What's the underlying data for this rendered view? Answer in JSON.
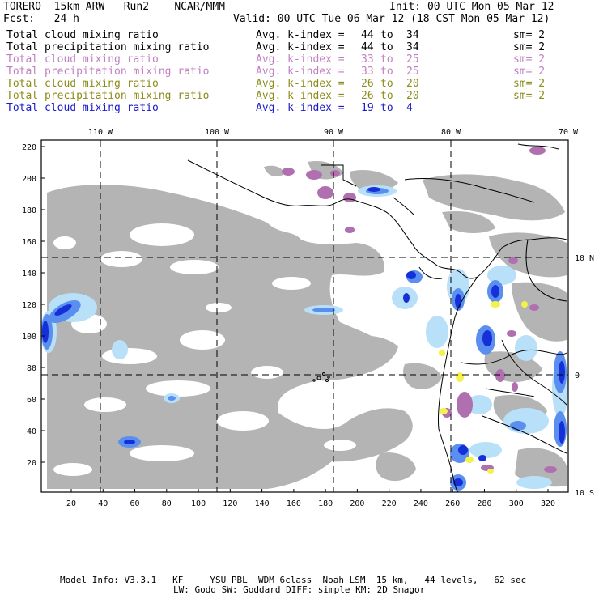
{
  "header": {
    "model": "TORERO",
    "resolution": "15km ARW",
    "run": "Run2",
    "org": "NCAR/MMM",
    "init": "Init: 00 UTC Mon 05 Mar 12",
    "fcst_label": "Fcst:",
    "fcst_value": "24 h",
    "valid": "Valid: 00 UTC Tue 06 Mar 12 (18 CST Mon 05 Mar 12)"
  },
  "legend": [
    {
      "field": "Total cloud mixing ratio",
      "kindex_label": "Avg. k-index =",
      "k_from": "44",
      "to": "to",
      "k_to": "34",
      "sm": "sm= 2",
      "color": "#000000"
    },
    {
      "field": "Total precipitation mixing ratio",
      "kindex_label": "Avg. k-index =",
      "k_from": "44",
      "to": "to",
      "k_to": "34",
      "sm": "sm= 2",
      "color": "#000000"
    },
    {
      "field": "Total cloud mixing ratio",
      "kindex_label": "Avg. k-index =",
      "k_from": "33",
      "to": "to",
      "k_to": "25",
      "sm": "sm= 2",
      "color": "#c080c0"
    },
    {
      "field": "Total precipitation mixing ratio",
      "kindex_label": "Avg. k-index =",
      "k_from": "33",
      "to": "to",
      "k_to": "25",
      "sm": "sm= 2",
      "color": "#c080c0"
    },
    {
      "field": "Total cloud mixing ratio",
      "kindex_label": "Avg. k-index =",
      "k_from": "26",
      "to": "to",
      "k_to": "20",
      "sm": "sm= 2",
      "color": "#8c8c1a"
    },
    {
      "field": "Total precipitation mixing ratio",
      "kindex_label": "Avg. k-index =",
      "k_from": "26",
      "to": "to",
      "k_to": "20",
      "sm": "sm= 2",
      "color": "#8c8c1a"
    },
    {
      "field": "Total cloud mixing ratio",
      "kindex_label": "Avg. k-index =",
      "k_from": "19",
      "to": "to",
      "k_to": "4",
      "sm": "",
      "color": "#1a1acc"
    }
  ],
  "map": {
    "lon_labels": [
      "110 W",
      "100 W",
      "90 W",
      "80 W",
      "70 W"
    ],
    "lat_labels": [
      "10 N",
      "0",
      "10 S"
    ],
    "y_ticks": [
      "220",
      "200",
      "180",
      "160",
      "140",
      "120",
      "100",
      "80",
      "60",
      "40",
      "20"
    ],
    "x_ticks": [
      "20",
      "40",
      "60",
      "80",
      "100",
      "120",
      "140",
      "160",
      "180",
      "200",
      "220",
      "240",
      "260",
      "280",
      "300",
      "320"
    ],
    "colors": {
      "cloud_gray": "#b4b4b4",
      "purple": "#b070b0",
      "yellow": "#f2f24a",
      "light_blue": "#b8e0f8",
      "mid_blue": "#5a8ff0",
      "dark_blue": "#1530d8"
    }
  },
  "footer": {
    "line1": "Model Info: V3.3.1   KF     YSU PBL  WDM 6class  Noah LSM  15 km,   44 levels,   62 sec",
    "line2": "LW: Godd SW: Goddard DIFF: simple KM: 2D Smagor"
  }
}
